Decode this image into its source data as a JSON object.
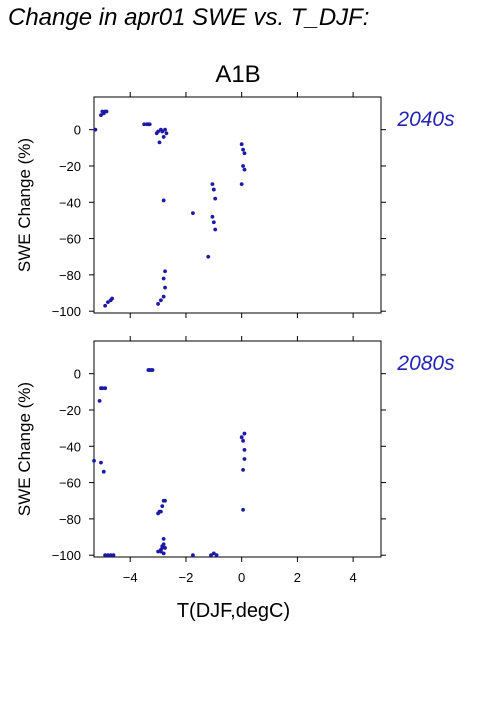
{
  "figure": {
    "title": "Change in apr01 SWE vs. T_DJF:",
    "scenario": "A1B"
  },
  "colors": {
    "points": "#1a1aa6",
    "period_label": "#2424b4",
    "axes": "#000000"
  },
  "chart_data": [
    {
      "type": "scatter",
      "period": "2040s",
      "xlabel": "",
      "ylabel": "SWE Change (%)",
      "xlim": [
        -5.3,
        5.0
      ],
      "ylim": [
        -101,
        18
      ],
      "x_ticks": [
        -4,
        -2,
        0,
        2,
        4
      ],
      "x_tick_labels": [],
      "y_ticks": [
        0,
        -20,
        -40,
        -60,
        -80,
        -100
      ],
      "y_tick_labels": [
        "0",
        "−20",
        "−40",
        "−60",
        "−80",
        "−100"
      ],
      "grid": false,
      "series": [
        {
          "x": [
            -5.25,
            -5.05,
            -5.0,
            -4.95,
            -4.9,
            -4.85,
            -3.5,
            -3.4,
            -3.35,
            -3.3,
            -3.05,
            -3.0,
            -2.95,
            -2.9,
            -2.85,
            -2.8,
            -2.75,
            -2.7,
            -2.8,
            -1.75,
            -1.2,
            -1.05,
            -1.0,
            -0.95,
            -1.05,
            -1.0,
            -0.95,
            0.0,
            0.05,
            0.1,
            0.05,
            0.1,
            0.0,
            -4.9,
            -4.8,
            -4.7,
            -4.65,
            -3.0,
            -2.9,
            -2.8,
            -2.75,
            -2.8,
            -2.75
          ],
          "y": [
            0,
            8,
            10,
            9,
            10,
            10,
            3,
            3,
            3,
            3,
            -2,
            -1,
            -7,
            0,
            -1,
            -4,
            0,
            -2,
            -39,
            -46,
            -70,
            -30,
            -33,
            -38,
            -48,
            -51,
            -55,
            -8,
            -11,
            -13,
            -20,
            -22,
            -30,
            -97,
            -95,
            -94,
            -93,
            -96,
            -94,
            -92,
            -87,
            -82,
            -78
          ]
        }
      ]
    },
    {
      "type": "scatter",
      "period": "2080s",
      "xlabel": "T(DJF,degC)",
      "ylabel": "SWE Change (%)",
      "xlim": [
        -5.3,
        5.0
      ],
      "ylim": [
        -101,
        18
      ],
      "x_ticks": [
        -4,
        -2,
        0,
        2,
        4
      ],
      "x_tick_labels": [
        "−4",
        "−2",
        "0",
        "2",
        "4"
      ],
      "y_ticks": [
        0,
        -20,
        -40,
        -60,
        -80,
        -100
      ],
      "y_tick_labels": [
        "0",
        "−20",
        "−40",
        "−60",
        "−80",
        "−100"
      ],
      "grid": false,
      "series": [
        {
          "x": [
            -5.3,
            -5.05,
            -4.95,
            -4.9,
            -5.1,
            -5.0,
            -5.05,
            -3.35,
            -3.3,
            -3.25,
            -3.2,
            -3.0,
            -2.95,
            -2.9,
            -2.85,
            -2.8,
            -2.75,
            -2.8,
            -2.85,
            -3.0,
            -2.9,
            -2.85,
            -2.8,
            -2.75,
            -2.8,
            -2.9,
            -4.9,
            -4.8,
            -4.7,
            -4.6,
            -1.75,
            -1.1,
            -1.0,
            -0.9,
            0.0,
            0.05,
            0.1,
            0.1,
            0.1,
            0.05,
            0.05
          ],
          "y": [
            -48,
            -49,
            -54,
            -8,
            -15,
            -8,
            -8,
            2,
            2,
            2,
            2,
            -77,
            -76,
            -76,
            -73,
            -70,
            -70,
            -91,
            -95,
            -98,
            -97,
            -96,
            -94,
            -96,
            -99,
            -98,
            -100,
            -100,
            -100,
            -100,
            -100,
            -100,
            -99,
            -100,
            -35,
            -37,
            -33,
            -42,
            -47,
            -53,
            -75
          ]
        }
      ]
    }
  ]
}
